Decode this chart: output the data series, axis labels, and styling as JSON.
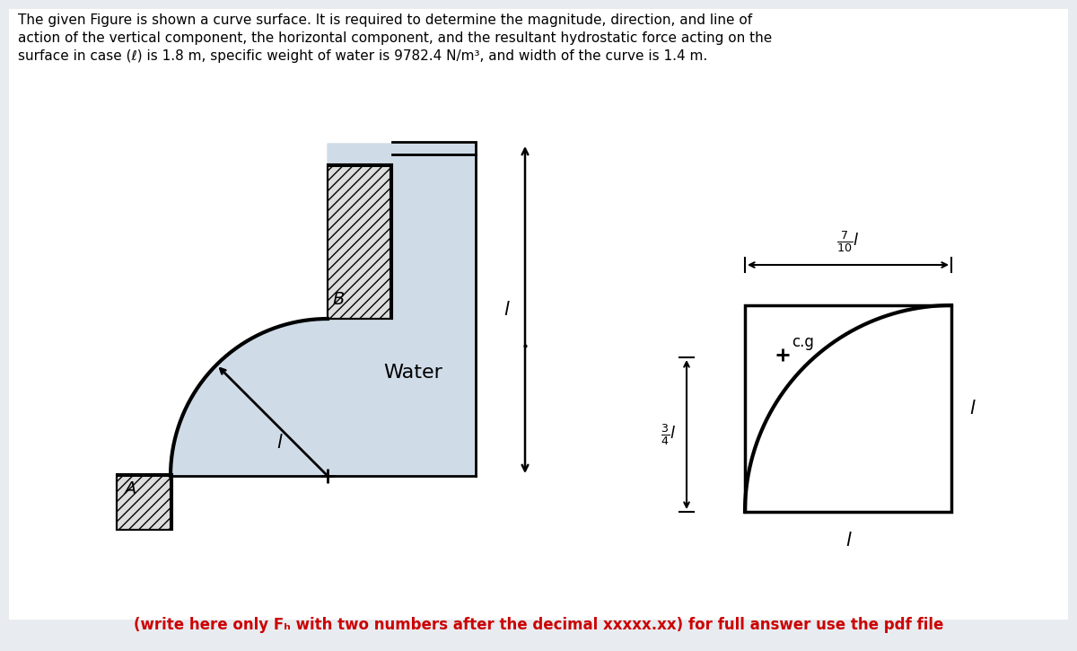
{
  "title_lines": [
    "The given Figure is shown a curve surface. It is required to determine the magnitude, direction, and line of",
    "action of the vertical component, the horizontal component, and the resultant hydrostatic force acting on the",
    "surface in case (ℓ) is 1.8 m, specific weight of water is 9782.4 N/m³, and width of the curve is 1.4 m."
  ],
  "bottom_text": "(write here only Fₕ with two numbers after the decimal xxxxx.xx) for full answer use the pdf file",
  "water_label": "Water",
  "label_A": "A",
  "label_B": "B",
  "label_l": "l",
  "label_cg": "c.g",
  "bg_color": "#e8edf2",
  "water_fill": "#cfdce8",
  "line_color": "#000000",
  "bottom_text_color": "#cc0000",
  "figure_bg": "#e8ecf0"
}
